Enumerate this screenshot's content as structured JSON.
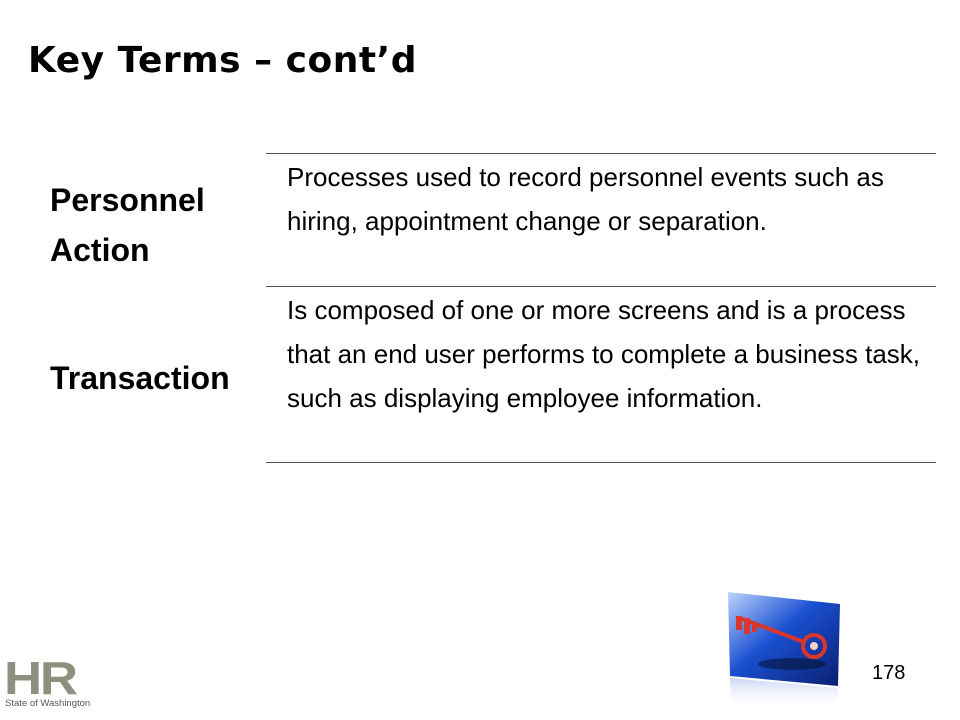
{
  "slide": {
    "title": "Key Terms – cont’d",
    "terms": [
      {
        "term": "Personnel Action",
        "definition": "Processes used to record personnel events such as hiring, appointment change or separation."
      },
      {
        "term": "Transaction",
        "definition": "Is composed of one or more screens and is a process that an end user performs to complete a business task, such as displaying employee information."
      }
    ],
    "page_number": "178"
  },
  "logo": {
    "letters": "HR",
    "subtitle": "State of Washington"
  },
  "colors": {
    "rule": "#555555",
    "logo": "#8f8f80",
    "key_card_blue": "#1a4fd0",
    "key_red": "#d9362c"
  },
  "icons": {
    "key_image": "key-image",
    "logo": "hr-logo"
  }
}
